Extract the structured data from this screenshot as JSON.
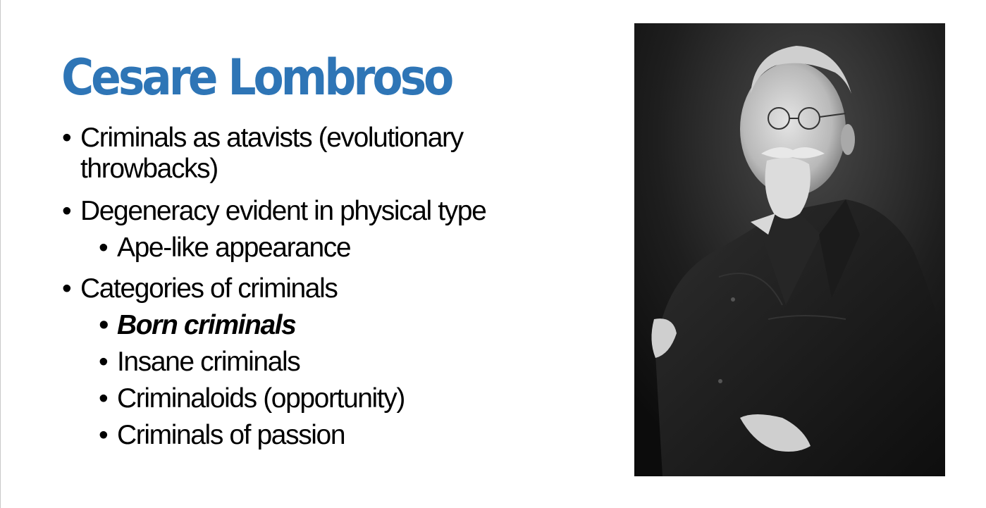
{
  "slide": {
    "title": "Cesare Lombroso",
    "accent_color": "#2e75b6",
    "bullets": [
      {
        "text": "Criminals as atavists (evolutionary throwbacks)"
      },
      {
        "text": "Degeneracy evident in physical type"
      },
      {
        "text": "Ape-like appearance"
      },
      {
        "text": "Categories of criminals"
      },
      {
        "text": "Born criminals"
      },
      {
        "text": "Insane criminals"
      },
      {
        "text": "Criminaloids (opportunity)"
      },
      {
        "text": "Criminals of passion"
      }
    ]
  }
}
